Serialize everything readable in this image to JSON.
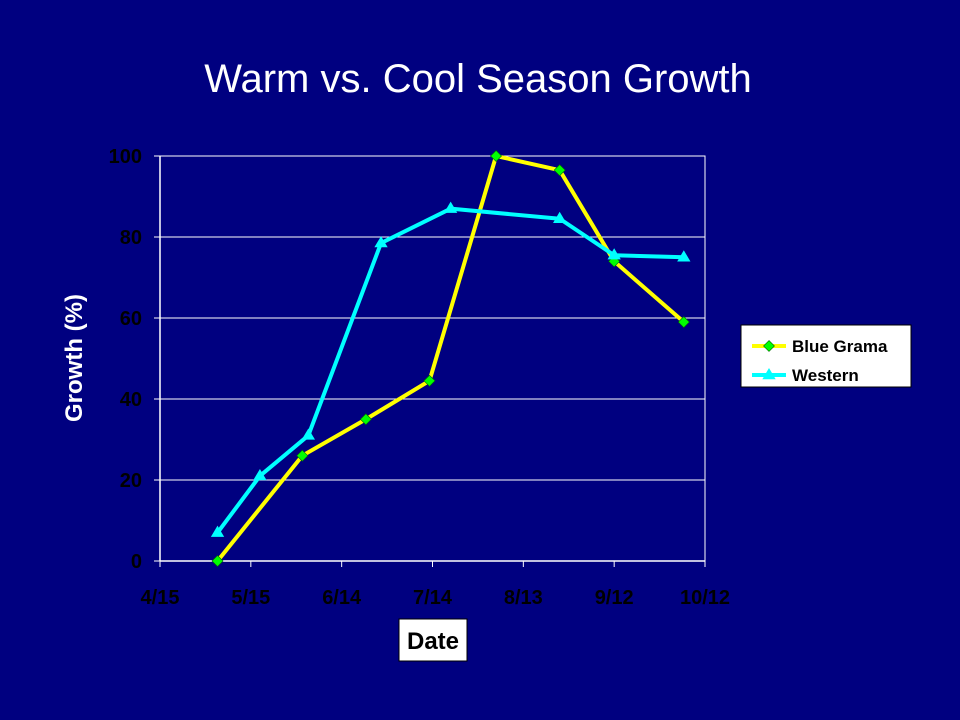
{
  "chart_data": {
    "type": "line",
    "title": "Warm vs. Cool Season Growth",
    "xlabel": "Date",
    "ylabel": "Growth (%)",
    "x_axis": "date",
    "x_ticks": [
      "4/15",
      "5/15",
      "6/14",
      "7/14",
      "8/13",
      "9/12",
      "10/12"
    ],
    "xlim": [
      "4/15",
      "10/12"
    ],
    "ylim": [
      0,
      100
    ],
    "y_ticks": [
      0,
      20,
      40,
      60,
      80,
      100
    ],
    "grid": "horizontal",
    "legend_position": "right",
    "series": [
      {
        "name": "Blue Grama",
        "color": "#ffff00",
        "marker": "diamond",
        "marker_color": "#00ff00",
        "x": [
          "5/4",
          "6/1",
          "6/22",
          "7/13",
          "8/4",
          "8/25",
          "9/12",
          "10/5"
        ],
        "y": [
          0,
          26,
          35,
          44.5,
          100,
          96.5,
          74,
          59
        ]
      },
      {
        "name": "Western",
        "color": "#00ffff",
        "marker": "triangle",
        "marker_color": "#00ffff",
        "x": [
          "5/4",
          "5/18",
          "6/3",
          "6/27",
          "7/20",
          "8/25",
          "9/12",
          "10/5"
        ],
        "y": [
          7,
          21,
          31,
          78.5,
          87,
          84.5,
          75.5,
          75
        ]
      }
    ]
  }
}
